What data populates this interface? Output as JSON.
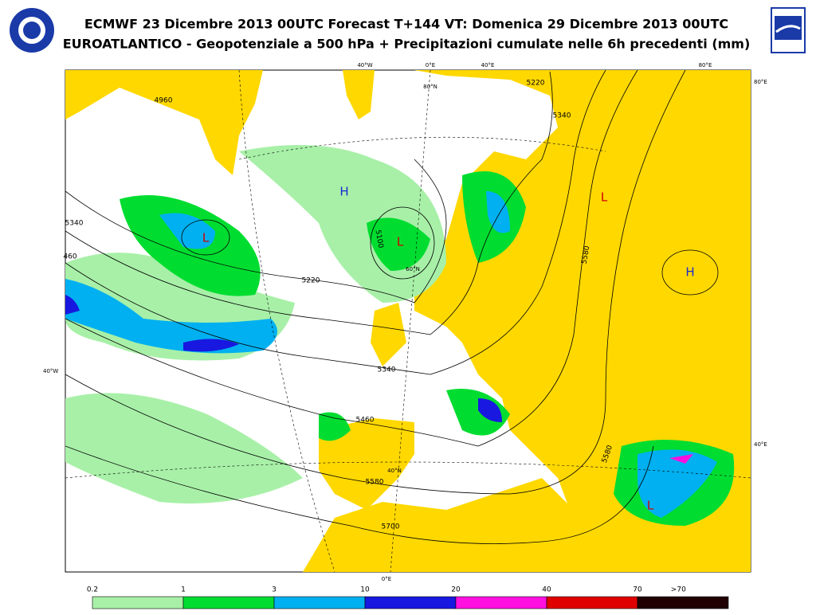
{
  "header": {
    "title": "ECMWF 23 Dicembre 2013 00UTC Forecast T+144 VT: Domenica 29 Dicembre 2013 00UTC",
    "subtitle": "EUROATLANTICO - Geopotenziale a 500 hPa + Precipitazioni cumulate nelle 6h precedenti (mm)"
  },
  "map": {
    "grid_labels": [
      "40°W",
      "0°E",
      "40°E",
      "80°E",
      "80°E",
      "40°W",
      "40°E",
      "0°E",
      "40°N",
      "60°N",
      "80°N"
    ],
    "contour_labels": [
      "4960",
      "5340",
      "460",
      "5220",
      "5100",
      "5340",
      "5460",
      "5580",
      "5700",
      "5580",
      "5340",
      "5220",
      "5580"
    ],
    "centers": [
      "L",
      "L",
      "H",
      "H",
      "L",
      "L"
    ]
  },
  "legend": {
    "labels": [
      "0.2",
      "1",
      "3",
      "10",
      "20",
      "40",
      "70",
      ">70"
    ],
    "colors": [
      "#a8f0a8",
      "#00dd30",
      "#00b0f0",
      "#1818e0",
      "#ff10e0",
      "#e00000",
      "#200000"
    ]
  }
}
